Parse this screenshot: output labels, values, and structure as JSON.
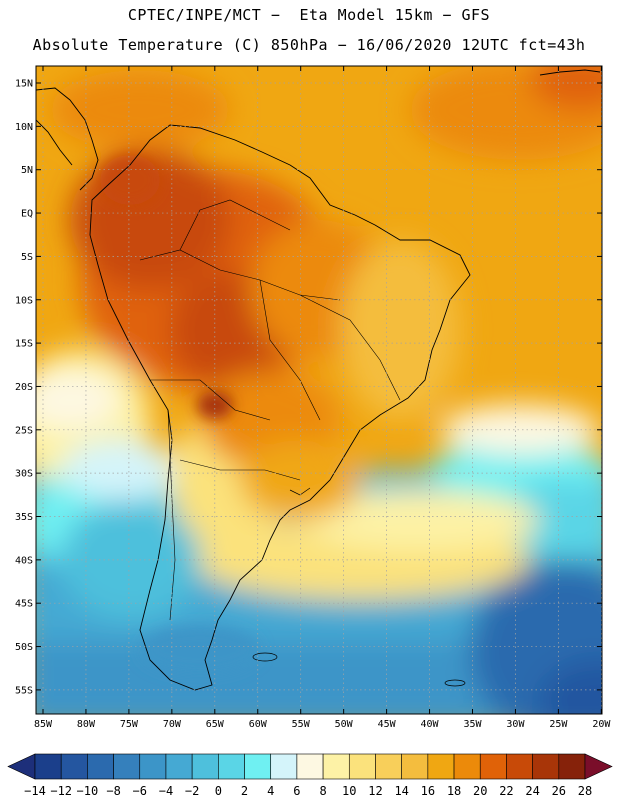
{
  "header": {
    "line1": "CPTEC/INPE/MCT −  Eta Model 15km − GFS",
    "line2": "Absolute Temperature (C) 850hPa − 16/06/2020 12UTC fct=43h"
  },
  "map": {
    "lat_labels": [
      "15N",
      "10N",
      "5N",
      "EQ",
      "5S",
      "10S",
      "15S",
      "20S",
      "25S",
      "30S",
      "35S",
      "40S",
      "45S",
      "50S",
      "55S"
    ],
    "lon_labels": [
      "85W",
      "80W",
      "75W",
      "70W",
      "65W",
      "60W",
      "55W",
      "50W",
      "45W",
      "40W",
      "35W",
      "30W",
      "25W",
      "20W"
    ]
  },
  "colorbar": {
    "labels": [
      "-14",
      "-12",
      "-10",
      "-8",
      "-6",
      "-4",
      "-2",
      "0",
      "2",
      "4",
      "6",
      "8",
      "10",
      "12",
      "14",
      "16",
      "18",
      "20",
      "22",
      "24",
      "26",
      "28"
    ],
    "colors": [
      "#1b3f8b",
      "#2456a0",
      "#2b6aae",
      "#3580bc",
      "#3c95c8",
      "#45a9d3",
      "#4ec0dc",
      "#5ad5e6",
      "#6ff0f2",
      "#d4f4fa",
      "#fdf8e2",
      "#fdf2a6",
      "#fbe27c",
      "#f8cf5a",
      "#f4bd3e",
      "#f0a712",
      "#ec8a0a",
      "#e06208",
      "#c84a08",
      "#a83508",
      "#86220a"
    ],
    "under_color": "#1d2f7a",
    "over_color": "#7a0e2a"
  }
}
